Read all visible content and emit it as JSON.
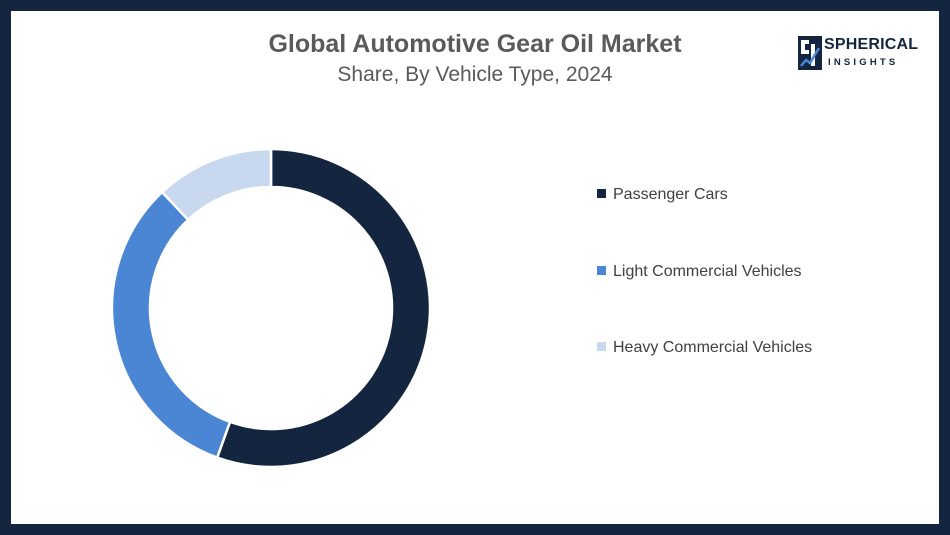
{
  "chart_data": {
    "type": "pie",
    "variant": "donut",
    "title": "Global Automotive Gear Oil Market",
    "subtitle": "Share, By Vehicle Type, 2024",
    "categories": [
      "Passenger Cars",
      "Light Commercial Vehicles",
      "Heavy Commercial Vehicles"
    ],
    "values": [
      55.5,
      32.5,
      12
    ],
    "unit": "%",
    "colors": [
      "#14253f",
      "#4a86d4",
      "#c7d8ef"
    ],
    "legend_position": "right"
  },
  "brand": {
    "word1": "SPHERICAL",
    "word2": "INSIGHTS",
    "color": "#14253f"
  },
  "frame_color": "#14253f"
}
